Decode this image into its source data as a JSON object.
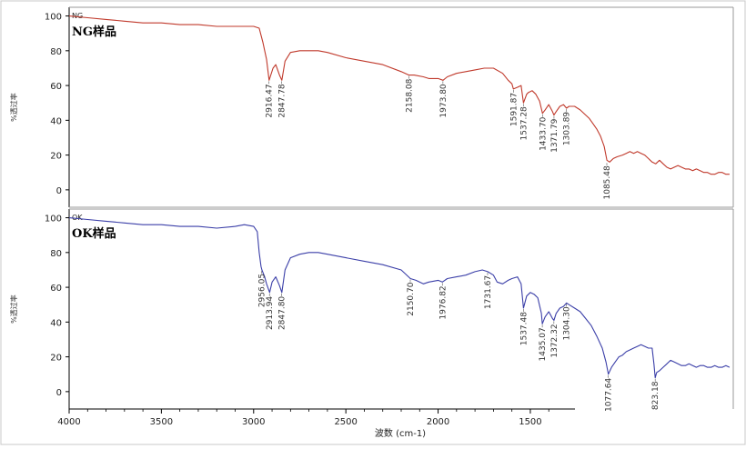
{
  "chart_data": [
    {
      "type": "line",
      "title": "NG样品",
      "tag": "NG",
      "ylabel": "%透过率",
      "color": "#c0392b",
      "xlim": [
        4000,
        400
      ],
      "ylim": [
        -10,
        105
      ],
      "yticks": [
        0,
        20,
        40,
        60,
        80,
        100
      ],
      "series": [
        {
          "x": [
            4000,
            3900,
            3800,
            3700,
            3600,
            3500,
            3400,
            3300,
            3200,
            3100,
            3050,
            3000,
            2970,
            2950,
            2930,
            2916,
            2895,
            2880,
            2860,
            2847,
            2830,
            2800,
            2750,
            2700,
            2650,
            2600,
            2500,
            2400,
            2300,
            2200,
            2158,
            2130,
            2080,
            2050,
            2000,
            1973,
            1950,
            1900,
            1850,
            1800,
            1750,
            1700,
            1650,
            1620,
            1600,
            1592,
            1570,
            1550,
            1537,
            1520,
            1510,
            1490,
            1470,
            1450,
            1434,
            1420,
            1400,
            1390,
            1380,
            1372,
            1360,
            1340,
            1320,
            1304,
            1290,
            1260,
            1230,
            1200,
            1180,
            1160,
            1140,
            1120,
            1100,
            1085,
            1070,
            1050,
            1030,
            1000,
            980,
            960,
            940,
            920,
            900,
            880,
            860,
            840,
            820,
            800,
            780,
            760,
            740,
            720,
            700,
            680,
            660,
            640,
            620,
            600,
            580,
            560,
            540,
            520,
            500,
            480,
            460,
            440,
            420
          ],
          "y": [
            100,
            99,
            98,
            97,
            96,
            96,
            95,
            95,
            94,
            94,
            94,
            94,
            93,
            85,
            75,
            63,
            70,
            72,
            66,
            63,
            74,
            79,
            80,
            80,
            80,
            79,
            76,
            74,
            72,
            68,
            66,
            66,
            65,
            64,
            64,
            63,
            65,
            67,
            68,
            69,
            70,
            70,
            67,
            63,
            61,
            58,
            59,
            60,
            50,
            55,
            56,
            57,
            55,
            51,
            44,
            46,
            49,
            47,
            45,
            43,
            45,
            48,
            49,
            47,
            48,
            48,
            46,
            43,
            41,
            38,
            35,
            31,
            25,
            17,
            16,
            18,
            19,
            20,
            21,
            22,
            21,
            22,
            21,
            20,
            18,
            16,
            15,
            17,
            15,
            13,
            12,
            13,
            14,
            13,
            12,
            12,
            11,
            12,
            11,
            10,
            10,
            9,
            9,
            10,
            10,
            9,
            9
          ]
        }
      ],
      "annotations": [
        {
          "x": 2916.47,
          "y": 63,
          "label": "2916.47"
        },
        {
          "x": 2847.78,
          "y": 63,
          "label": "2847.78"
        },
        {
          "x": 2158.08,
          "y": 66,
          "label": "2158.08"
        },
        {
          "x": 1973.8,
          "y": 63,
          "label": "1973.80"
        },
        {
          "x": 1591.87,
          "y": 58,
          "label": "1591.87"
        },
        {
          "x": 1537.28,
          "y": 50,
          "label": "1537.28"
        },
        {
          "x": 1433.7,
          "y": 44,
          "label": "1433.70"
        },
        {
          "x": 1371.79,
          "y": 43,
          "label": "1371.79"
        },
        {
          "x": 1303.89,
          "y": 47,
          "label": "1303.89"
        },
        {
          "x": 1085.48,
          "y": 16,
          "label": "1085.48"
        }
      ]
    },
    {
      "type": "line",
      "title": "OK样品",
      "tag": "OK",
      "ylabel": "%透过率",
      "color": "#3b3fa8",
      "xlabel": "波数 (cm-1)",
      "xlim": [
        4000,
        400
      ],
      "ylim": [
        -10,
        105
      ],
      "yticks": [
        0,
        20,
        40,
        60,
        80,
        100
      ],
      "xticks": [
        4000,
        3500,
        3000,
        2500,
        2000,
        1500
      ],
      "series": [
        {
          "x": [
            4000,
            3900,
            3800,
            3700,
            3600,
            3500,
            3400,
            3300,
            3200,
            3100,
            3050,
            3000,
            2980,
            2970,
            2960,
            2955,
            2940,
            2930,
            2913,
            2900,
            2880,
            2860,
            2847,
            2830,
            2800,
            2750,
            2700,
            2650,
            2600,
            2500,
            2400,
            2300,
            2200,
            2150,
            2120,
            2080,
            2050,
            2000,
            1977,
            1950,
            1900,
            1850,
            1800,
            1760,
            1731,
            1700,
            1680,
            1650,
            1620,
            1600,
            1570,
            1550,
            1537,
            1520,
            1500,
            1480,
            1460,
            1440,
            1435,
            1420,
            1400,
            1390,
            1380,
            1372,
            1360,
            1340,
            1320,
            1304,
            1290,
            1260,
            1230,
            1200,
            1170,
            1140,
            1110,
            1090,
            1077,
            1060,
            1040,
            1020,
            1000,
            980,
            960,
            940,
            920,
            900,
            880,
            860,
            840,
            830,
            823,
            815,
            800,
            780,
            760,
            740,
            720,
            700,
            680,
            660,
            640,
            620,
            600,
            580,
            560,
            540,
            520,
            500,
            480,
            460,
            440,
            420
          ],
          "y": [
            100,
            99,
            98,
            97,
            96,
            96,
            95,
            95,
            94,
            95,
            96,
            95,
            92,
            80,
            72,
            70,
            66,
            62,
            57,
            63,
            66,
            61,
            57,
            70,
            77,
            79,
            80,
            80,
            79,
            77,
            75,
            73,
            70,
            65,
            64,
            62,
            63,
            64,
            63,
            65,
            66,
            67,
            69,
            70,
            69,
            67,
            63,
            62,
            64,
            65,
            66,
            62,
            48,
            55,
            57,
            56,
            54,
            45,
            39,
            43,
            46,
            44,
            42,
            41,
            45,
            48,
            49,
            51,
            50,
            48,
            46,
            42,
            38,
            32,
            25,
            17,
            10,
            14,
            17,
            20,
            21,
            23,
            24,
            25,
            26,
            27,
            26,
            25,
            25,
            16,
            8,
            11,
            12,
            14,
            16,
            18,
            17,
            16,
            15,
            15,
            16,
            15,
            14,
            15,
            15,
            14,
            14,
            15,
            14,
            14,
            15,
            14
          ]
        }
      ],
      "annotations": [
        {
          "x": 2956.05,
          "y": 70,
          "label": "2956.05"
        },
        {
          "x": 2913.94,
          "y": 57,
          "label": "2913.94"
        },
        {
          "x": 2847.8,
          "y": 57,
          "label": "2847.80"
        },
        {
          "x": 2150.7,
          "y": 65,
          "label": "2150.70"
        },
        {
          "x": 1976.82,
          "y": 63,
          "label": "1976.82"
        },
        {
          "x": 1731.67,
          "y": 69,
          "label": "1731.67"
        },
        {
          "x": 1537.48,
          "y": 48,
          "label": "1537.48"
        },
        {
          "x": 1435.07,
          "y": 39,
          "label": "1435.07"
        },
        {
          "x": 1372.32,
          "y": 41,
          "label": "1372.32"
        },
        {
          "x": 1304.3,
          "y": 51,
          "label": "1304.30"
        },
        {
          "x": 1077.64,
          "y": 10,
          "label": "1077.64"
        },
        {
          "x": 823.18,
          "y": 8,
          "label": "823.18"
        }
      ]
    }
  ]
}
